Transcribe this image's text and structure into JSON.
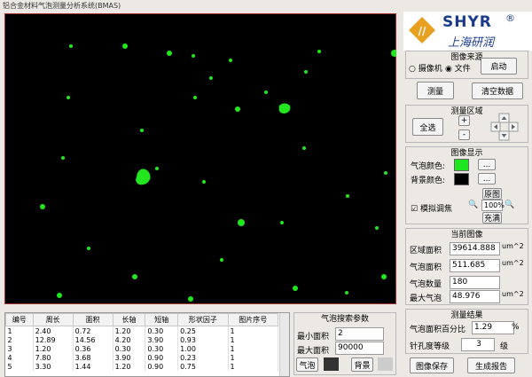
{
  "window_title": "铝合金材料气泡测量分析系统(BMAS)",
  "logo": {
    "brand": "SHYR",
    "registered": "®",
    "chinese": "上海研润"
  },
  "image_source": {
    "title": "图像来源",
    "camera": "摄像机",
    "file": "文件",
    "start": "启动"
  },
  "actions": {
    "measure": "测量",
    "clear": "清空数据"
  },
  "measure_area": {
    "title": "测量区域",
    "select_all": "全选",
    "plus": "+",
    "minus": "-"
  },
  "image_display": {
    "title": "图像显示",
    "bubble_color": "气泡颜色:",
    "background_color": "背景颜色:",
    "more": "...",
    "simulate_focus": "模拟调焦",
    "original": "原图",
    "zoom": "100%",
    "fill": "充满"
  },
  "current_image": {
    "title": "当前图像",
    "rows": [
      {
        "label": "区域面积",
        "value": "39614.888",
        "unit": "um^2"
      },
      {
        "label": "气泡面积",
        "value": "511.685",
        "unit": "um^2"
      },
      {
        "label": "气泡数量",
        "value": "180"
      },
      {
        "label": "最大气泡",
        "value": "48.976",
        "unit": "um^2"
      }
    ]
  },
  "results": {
    "title": "测量结果",
    "percent_label": "气泡面积百分比",
    "percent_value": "1.29",
    "percent_unit": "%",
    "grade_label": "针孔度等级",
    "grade_value": "3",
    "grade_unit": "级"
  },
  "table": {
    "headers": [
      "编号",
      "周长",
      "面积",
      "长轴",
      "短轴",
      "形状因子",
      "图片序号"
    ],
    "rows": [
      [
        "1",
        "2.40",
        "0.72",
        "1.20",
        "0.30",
        "0.25",
        "1"
      ],
      [
        "2",
        "12.89",
        "14.56",
        "4.20",
        "3.90",
        "0.93",
        "1"
      ],
      [
        "3",
        "1.20",
        "0.36",
        "0.30",
        "0.30",
        "1.00",
        "1"
      ],
      [
        "4",
        "7.80",
        "3.68",
        "3.90",
        "0.90",
        "0.23",
        "1"
      ],
      [
        "5",
        "3.30",
        "1.44",
        "1.20",
        "0.90",
        "0.75",
        "1"
      ]
    ]
  },
  "search_params": {
    "title": "气泡搜索参数",
    "min_label": "最小面积",
    "min_value": "2",
    "max_label": "最大面积",
    "max_value": "90000",
    "bubble": "气泡",
    "background": "背景"
  },
  "bottom_buttons": {
    "save": "图像保存",
    "report": "生成报告"
  }
}
